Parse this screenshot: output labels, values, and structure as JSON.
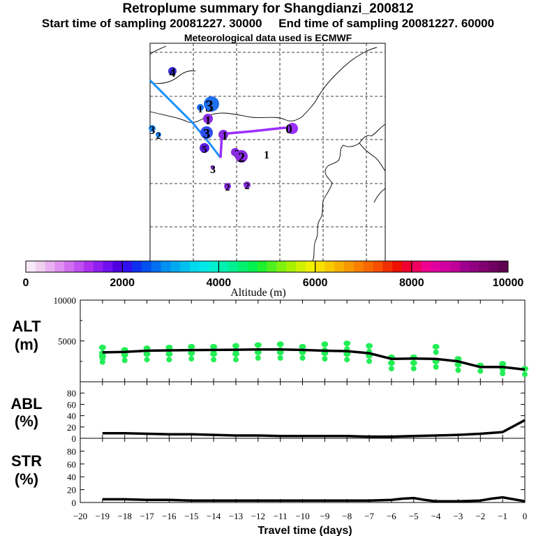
{
  "header": {
    "title": "Retroplume summary for Shangdianzi_200812",
    "subtitle": "Start time of sampling 20081227. 30000     End time of sampling 20081227. 60000",
    "met_line": "Meteorological data used is ECMWF"
  },
  "colorbar": {
    "title": "Altitude (m)",
    "tick_labels": [
      "0",
      "2000",
      "4000",
      "6000",
      "8000",
      "10000"
    ],
    "range": [
      0,
      10000
    ],
    "colors": [
      "#f8e8f8",
      "#f0d0f0",
      "#e8b0f0",
      "#e090f0",
      "#d070f0",
      "#c050f0",
      "#b030f0",
      "#9020f0",
      "#7010f0",
      "#5000e0",
      "#3010f0",
      "#1030f0",
      "#0050f0",
      "#0070f0",
      "#0090f0",
      "#00a8f0",
      "#00c0f0",
      "#00d8f0",
      "#00e8e8",
      "#00f0d0",
      "#00f0b0",
      "#00f090",
      "#00f070",
      "#00f050",
      "#20f030",
      "#50f020",
      "#80f010",
      "#a8f000",
      "#d0f000",
      "#f0f000",
      "#f8e000",
      "#f8c800",
      "#f8b000",
      "#f89800",
      "#f88000",
      "#f86800",
      "#f85000",
      "#f03000",
      "#f01000",
      "#f00030",
      "#f00060",
      "#f00090",
      "#e000a0",
      "#d000a0",
      "#c00098",
      "#a00090",
      "#900080",
      "#800070",
      "#700060",
      "#600050"
    ]
  },
  "map": {
    "trajectory_lines": [
      {
        "name": "blue-trajectory",
        "color": "#1e90ff"
      },
      {
        "name": "purple-trajectory",
        "color": "#9b30ff"
      }
    ],
    "markers": [
      {
        "label": "4",
        "color": "#3a2bd8"
      },
      {
        "label": "3",
        "color": "#1e6ff0"
      },
      {
        "label": "1",
        "color": "#1e6ff0"
      },
      {
        "label": "1",
        "color": "#8a2be2"
      },
      {
        "label": "3",
        "color": "#1e90ff"
      },
      {
        "label": "2",
        "color": "#1e90ff"
      },
      {
        "label": "3",
        "color": "#3050f0"
      },
      {
        "label": "1",
        "color": "#8a2be2"
      },
      {
        "label": "0",
        "color": "#9b30ff"
      },
      {
        "label": "5",
        "color": "#5a1ee0"
      },
      {
        "label": "3",
        "color": "#8a2be2"
      },
      {
        "label": "2",
        "color": "#8a2be2"
      },
      {
        "label": "3",
        "color": "#8a2be2"
      },
      {
        "label": "2",
        "color": "#8a2be2"
      },
      {
        "label": "2",
        "color": "#8a2be2"
      },
      {
        "label": "1",
        "color": "#8a2be2"
      }
    ]
  },
  "x_axis": {
    "title": "Travel time (days)",
    "tick_labels": [
      "−20",
      "−19",
      "−18",
      "−17",
      "−16",
      "−15",
      "−14",
      "−13",
      "−12",
      "−11",
      "−10",
      "−9",
      "−8",
      "−7",
      "−6",
      "−5",
      "−4",
      "−3",
      "−2",
      "−1",
      "0"
    ]
  },
  "chart_data": [
    {
      "type": "line",
      "panel": "ALT",
      "ylabel": [
        "ALT",
        "(m)"
      ],
      "xlabel": "Travel time (days)",
      "xlim": [
        -20,
        0
      ],
      "ylim": [
        0,
        10000
      ],
      "yticks": [
        5000,
        10000
      ],
      "ytick_labels": [
        "5000",
        "10000"
      ],
      "series": [
        {
          "name": "mean altitude",
          "x": [
            -19,
            -18,
            -17,
            -16,
            -15,
            -14,
            -13,
            -12,
            -11,
            -10,
            -9,
            -8,
            -7,
            -6,
            -5,
            -4,
            -3,
            -2,
            -1,
            0
          ],
          "values": [
            3600,
            3650,
            3800,
            3850,
            3880,
            3900,
            3920,
            3950,
            3950,
            3900,
            3800,
            3750,
            3500,
            2800,
            2850,
            2800,
            2500,
            1800,
            1800,
            1500
          ]
        },
        {
          "name": "cluster altitudes (green dots)",
          "x": [
            -19,
            -19,
            -19,
            -18,
            -18,
            -17,
            -17,
            -16,
            -16,
            -15,
            -15,
            -14,
            -14,
            -13,
            -13,
            -12,
            -12,
            -11,
            -11,
            -10,
            -10,
            -9,
            -9,
            -8,
            -8,
            -7,
            -7,
            -6,
            -6,
            -5,
            -5,
            -4,
            -4,
            -3,
            -3,
            -2,
            -1,
            -1,
            0
          ],
          "values": [
            4200,
            3500,
            3100,
            3900,
            3300,
            4100,
            3400,
            4200,
            3400,
            4300,
            3500,
            4300,
            3400,
            4400,
            3400,
            4500,
            3600,
            4600,
            3600,
            4300,
            3600,
            4600,
            3500,
            4700,
            3400,
            4400,
            3200,
            3000,
            2300,
            3000,
            2300,
            4300,
            2500,
            2800,
            2100,
            2000,
            2200,
            1700,
            1600
          ]
        }
      ]
    },
    {
      "type": "line",
      "panel": "ABL",
      "ylabel": [
        "ABL",
        "(%)"
      ],
      "xlim": [
        -20,
        0
      ],
      "ylim": [
        0,
        100
      ],
      "yticks": [
        0,
        20,
        40,
        60,
        80
      ],
      "ytick_labels": [
        "0",
        "20",
        "40",
        "60",
        "80"
      ],
      "series": [
        {
          "name": "fraction in boundary layer",
          "x": [
            -19,
            -18,
            -17,
            -16,
            -15,
            -14,
            -13,
            -12,
            -11,
            -10,
            -9,
            -8,
            -7,
            -6,
            -5,
            -4,
            -3,
            -2,
            -1,
            0
          ],
          "values": [
            9,
            9,
            8,
            7,
            7,
            6,
            5,
            5,
            4,
            4,
            4,
            4,
            3,
            3,
            4,
            5,
            6,
            8,
            11,
            32
          ]
        }
      ]
    },
    {
      "type": "line",
      "panel": "STR",
      "ylabel": [
        "STR",
        "(%)"
      ],
      "xlim": [
        -20,
        0
      ],
      "ylim": [
        0,
        100
      ],
      "yticks": [
        0,
        20,
        40,
        60,
        80
      ],
      "ytick_labels": [
        "0",
        "20",
        "40",
        "60",
        "80"
      ],
      "series": [
        {
          "name": "fraction in stratosphere",
          "x": [
            -19,
            -18,
            -17,
            -16,
            -15,
            -14,
            -13,
            -12,
            -11,
            -10,
            -9,
            -8,
            -7,
            -6,
            -5.5,
            -5,
            -4.5,
            -4,
            -3,
            -2,
            -1.5,
            -1,
            0
          ],
          "values": [
            5,
            5,
            4,
            4,
            3,
            3,
            3,
            3,
            3,
            3,
            3,
            3,
            3,
            4,
            6,
            7,
            4,
            2,
            2,
            3,
            6,
            8,
            2
          ]
        }
      ]
    }
  ]
}
